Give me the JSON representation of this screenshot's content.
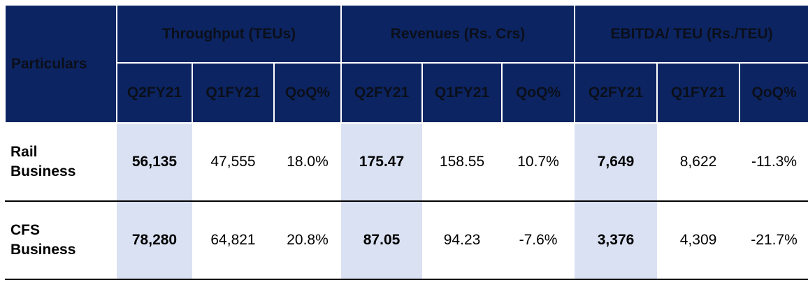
{
  "header": {
    "particulars": "Particulars",
    "groups": [
      "Throughput (TEUs)",
      "Revenues (Rs. Crs)",
      "EBITDA/ TEU (Rs./TEU)"
    ],
    "subheaders": [
      "Q2FY21",
      "Q1FY21",
      "QoQ%"
    ]
  },
  "rows": [
    {
      "label_line1": "Rail",
      "label_line2": "Business",
      "values": [
        "56,135",
        "47,555",
        "18.0%",
        "175.47",
        "158.55",
        "10.7%",
        "7,649",
        "8,622",
        "-11.3%"
      ]
    },
    {
      "label_line1": "CFS",
      "label_line2": "Business",
      "values": [
        "78,280",
        "64,821",
        "20.8%",
        "87.05",
        "94.23",
        "-7.6%",
        "3,376",
        "4,309",
        "-21.7%"
      ]
    }
  ],
  "colors": {
    "header_bg": "#0c2461",
    "highlight_bg": "#d9e1f2"
  }
}
